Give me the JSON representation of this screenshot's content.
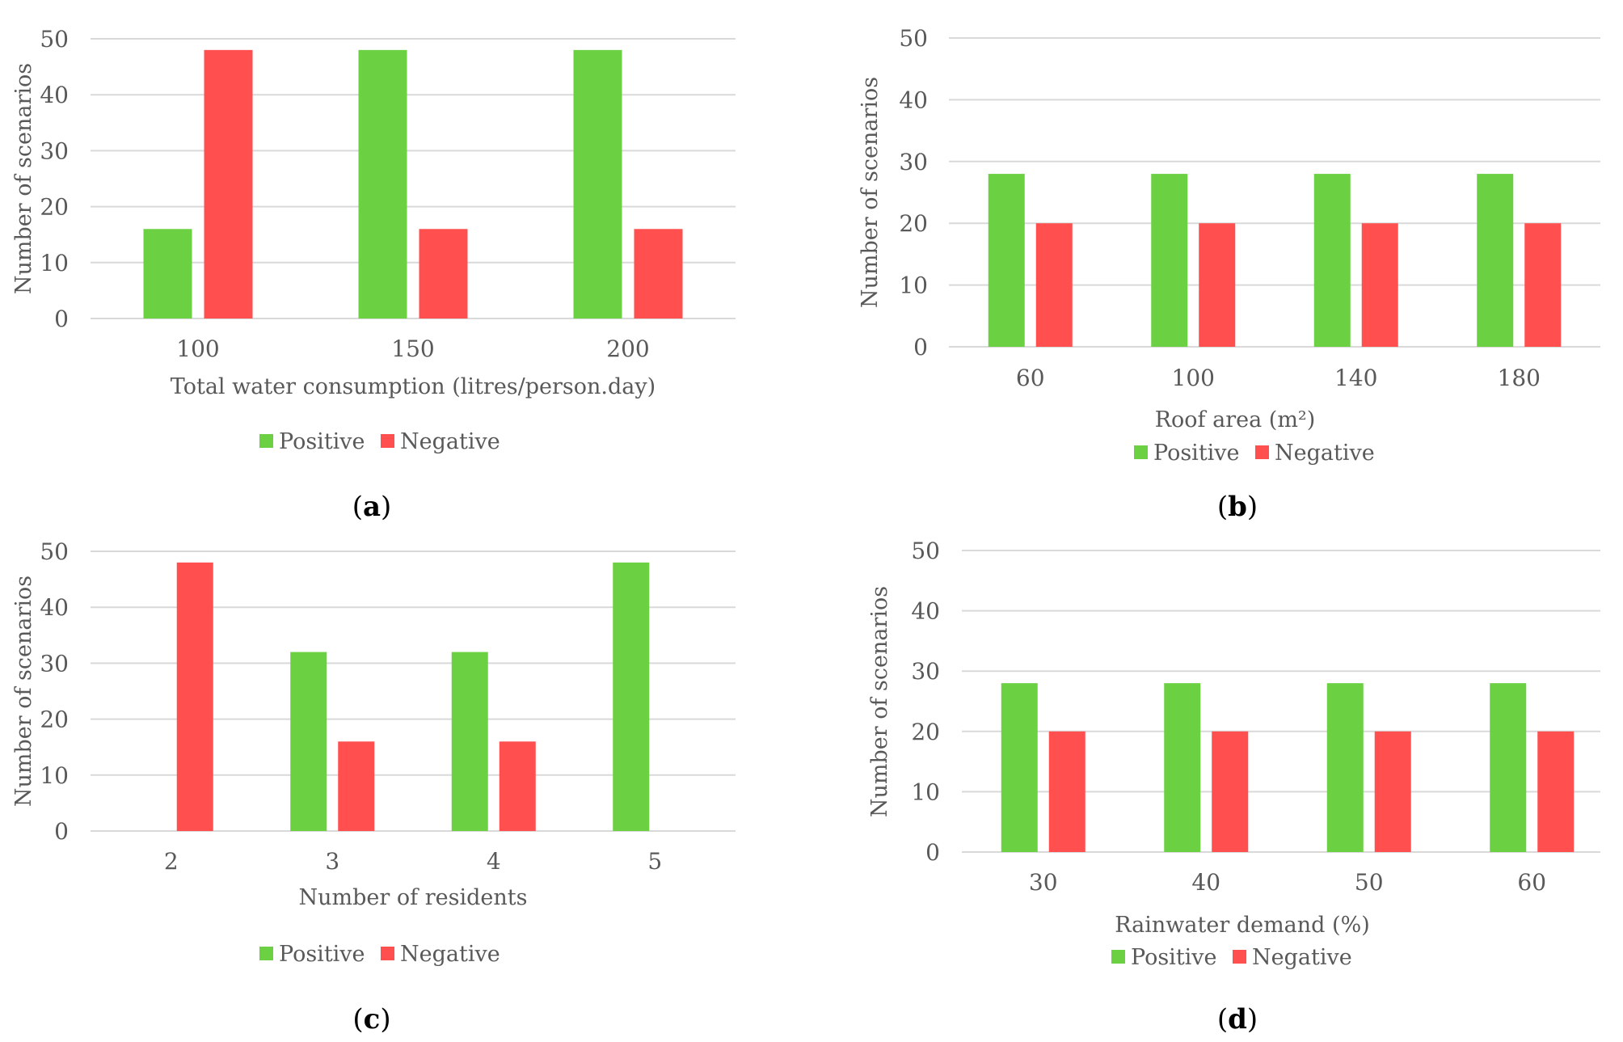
{
  "colors": {
    "positive": "#6bd143",
    "negative": "#ff4f4f",
    "grid": "#d9d9d9",
    "text": "#595959"
  },
  "chart_data": [
    {
      "type": "bar",
      "panel_label": "a",
      "title": "",
      "xlabel": "Total water consumption (litres/person.day)",
      "ylabel": "Number of scenarios",
      "ylim": [
        0,
        50
      ],
      "y_ticks": [
        "0",
        "10",
        "20",
        "30",
        "40",
        "50"
      ],
      "grid": true,
      "legend_position": "bottom",
      "categories": [
        "100",
        "150",
        "200"
      ],
      "series": [
        {
          "name": "Positive",
          "color_key": "positive",
          "values": [
            16,
            48,
            48
          ]
        },
        {
          "name": "Negative",
          "color_key": "negative",
          "values": [
            48,
            16,
            16
          ]
        }
      ]
    },
    {
      "type": "bar",
      "panel_label": "b",
      "title": "",
      "xlabel": "Roof area (m²)",
      "ylabel": "Number of scenarios",
      "ylim": [
        0,
        50
      ],
      "y_ticks": [
        "0",
        "10",
        "20",
        "30",
        "40",
        "50"
      ],
      "grid": true,
      "legend_position": "bottom",
      "categories": [
        "60",
        "100",
        "140",
        "180"
      ],
      "series": [
        {
          "name": "Positive",
          "color_key": "positive",
          "values": [
            28,
            28,
            28,
            28
          ]
        },
        {
          "name": "Negative",
          "color_key": "negative",
          "values": [
            20,
            20,
            20,
            20
          ]
        }
      ]
    },
    {
      "type": "bar",
      "panel_label": "c",
      "title": "",
      "xlabel": "Number of residents",
      "ylabel": "Number of scenarios",
      "ylim": [
        0,
        50
      ],
      "y_ticks": [
        "0",
        "10",
        "20",
        "30",
        "40",
        "50"
      ],
      "grid": true,
      "legend_position": "bottom",
      "categories": [
        "2",
        "3",
        "4",
        "5"
      ],
      "series": [
        {
          "name": "Positive",
          "color_key": "positive",
          "values": [
            0,
            32,
            32,
            48
          ]
        },
        {
          "name": "Negative",
          "color_key": "negative",
          "values": [
            48,
            16,
            16,
            0
          ]
        }
      ]
    },
    {
      "type": "bar",
      "panel_label": "d",
      "title": "",
      "xlabel": "Rainwater demand (%)",
      "ylabel": "Number of scenarios",
      "ylim": [
        0,
        50
      ],
      "y_ticks": [
        "0",
        "10",
        "20",
        "30",
        "40",
        "50"
      ],
      "grid": true,
      "legend_position": "bottom",
      "categories": [
        "30",
        "40",
        "50",
        "60"
      ],
      "series": [
        {
          "name": "Positive",
          "color_key": "positive",
          "values": [
            28,
            28,
            28,
            28
          ]
        },
        {
          "name": "Negative",
          "color_key": "negative",
          "values": [
            20,
            20,
            20,
            20
          ]
        }
      ]
    }
  ]
}
